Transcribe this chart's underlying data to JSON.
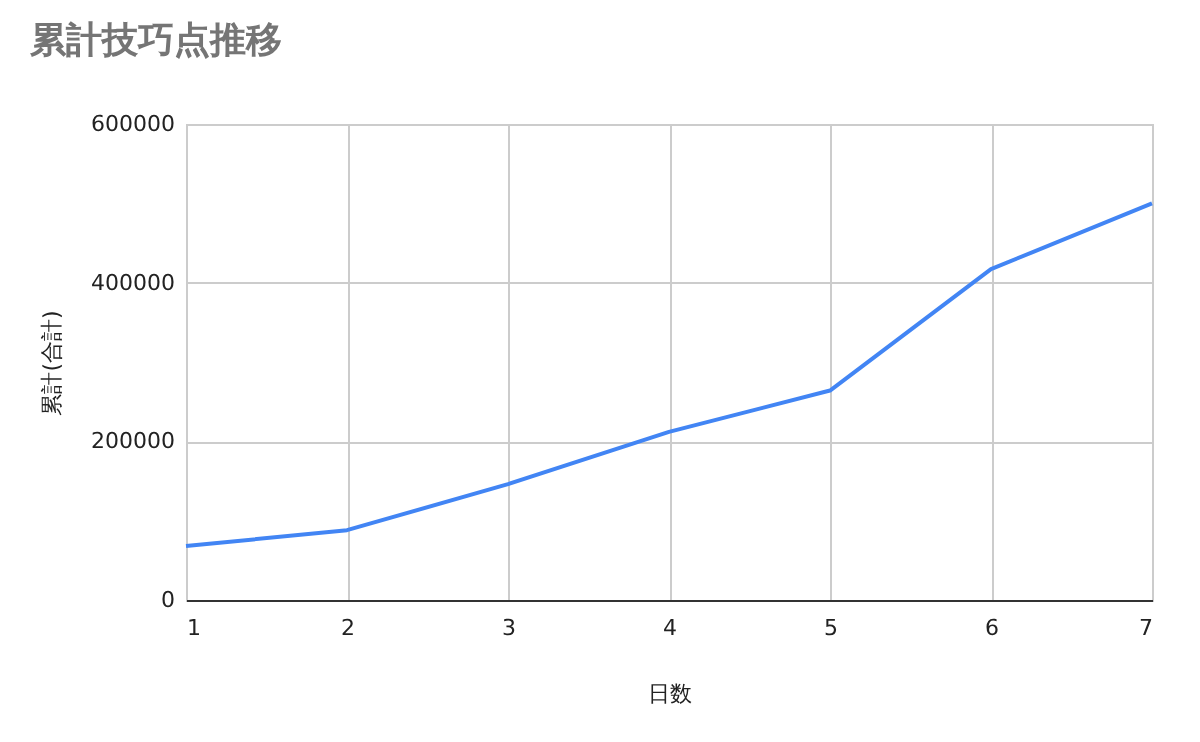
{
  "chart_data": {
    "type": "line",
    "title": "累計技巧点推移",
    "xlabel": "日数",
    "ylabel": "累計(合計)",
    "x": [
      1,
      2,
      3,
      4,
      5,
      6,
      7
    ],
    "series": [
      {
        "color": "#4285f4",
        "values": [
          68000,
          88000,
          146000,
          212000,
          264000,
          417000,
          500000
        ]
      }
    ],
    "xlim": [
      1,
      7
    ],
    "xticks": [
      1,
      2,
      3,
      4,
      5,
      6,
      7
    ],
    "ylim": [
      0,
      600000
    ],
    "yticks": [
      0,
      200000,
      400000,
      600000
    ],
    "grid": true,
    "legend": false,
    "marker": "none",
    "line_style": "solid"
  }
}
